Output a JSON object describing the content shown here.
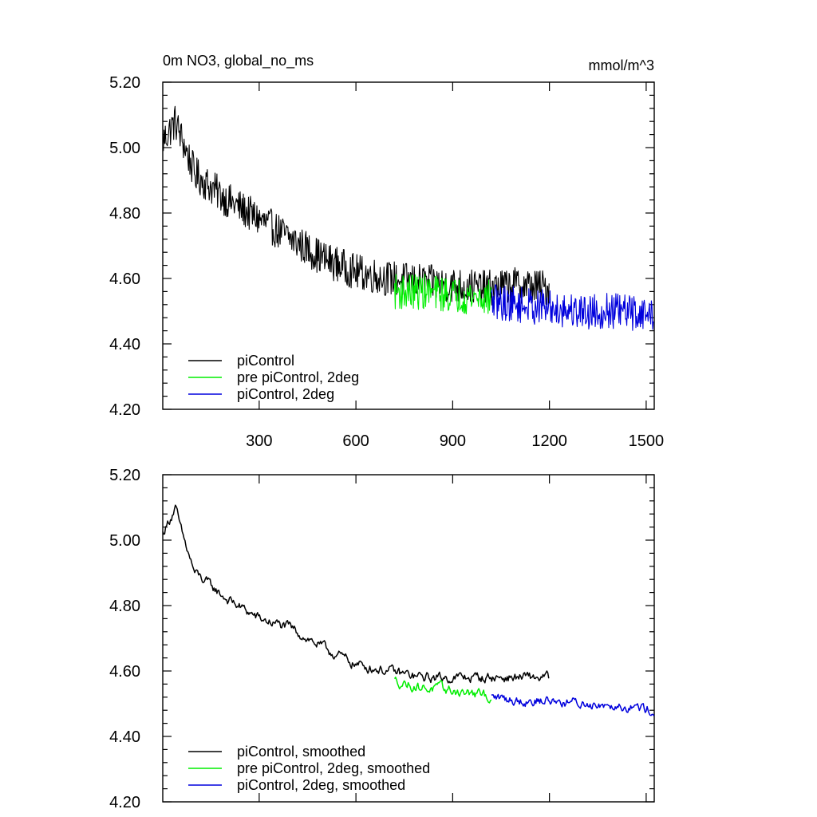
{
  "chart_data": [
    {
      "type": "line",
      "title": "0m NO3, global_no_ms",
      "units": "mmol/m^3",
      "xlim": [
        1,
        1525
      ],
      "ylim": [
        4.2,
        5.2
      ],
      "x_ticks": [
        300,
        600,
        900,
        1200,
        1500
      ],
      "x_tick_labels": [
        "300",
        "600",
        "900",
        "1200",
        "1500"
      ],
      "y_ticks": [
        4.2,
        4.4,
        4.6,
        4.8,
        5.0,
        5.2
      ],
      "y_tick_labels": [
        "4.20",
        "4.40",
        "4.60",
        "4.80",
        "5.00",
        "5.20"
      ],
      "grid": false,
      "legend_position": "bottom-left",
      "series": [
        {
          "name": "piControl",
          "color": "#000000",
          "noise": 0.055,
          "knots": [
            [
              1,
              5.02
            ],
            [
              40,
              5.08
            ],
            [
              100,
              4.92
            ],
            [
              200,
              4.84
            ],
            [
              300,
              4.78
            ],
            [
              400,
              4.72
            ],
            [
              500,
              4.66
            ],
            [
              600,
              4.62
            ],
            [
              700,
              4.6
            ],
            [
              800,
              4.59
            ],
            [
              900,
              4.58
            ],
            [
              1000,
              4.57
            ],
            [
              1100,
              4.58
            ],
            [
              1200,
              4.57
            ]
          ]
        },
        {
          "name": "pre piControl, 2deg",
          "color": "#00ee00",
          "noise": 0.055,
          "knots": [
            [
              720,
              4.56
            ],
            [
              800,
              4.56
            ],
            [
              900,
              4.55
            ],
            [
              1020,
              4.54
            ]
          ]
        },
        {
          "name": "piControl, 2deg",
          "color": "#0000dd",
          "noise": 0.055,
          "knots": [
            [
              1020,
              4.53
            ],
            [
              1100,
              4.52
            ],
            [
              1200,
              4.51
            ],
            [
              1300,
              4.5
            ],
            [
              1400,
              4.5
            ],
            [
              1525,
              4.49
            ]
          ]
        }
      ]
    },
    {
      "type": "line",
      "title": "",
      "xlim": [
        1,
        1525
      ],
      "ylim": [
        4.2,
        5.2
      ],
      "x_ticks": [
        300,
        600,
        900,
        1200,
        1500
      ],
      "y_ticks": [
        4.2,
        4.4,
        4.6,
        4.8,
        5.0,
        5.2
      ],
      "y_tick_labels": [
        "4.20",
        "4.40",
        "4.60",
        "4.80",
        "5.00",
        "5.20"
      ],
      "grid": false,
      "legend_position": "bottom-left",
      "series": [
        {
          "name": "piControl, smoothed",
          "color": "#000000",
          "noise": 0.02,
          "knots": [
            [
              1,
              5.02
            ],
            [
              40,
              5.1
            ],
            [
              60,
              5.02
            ],
            [
              100,
              4.9
            ],
            [
              200,
              4.82
            ],
            [
              300,
              4.76
            ],
            [
              400,
              4.73
            ],
            [
              500,
              4.67
            ],
            [
              600,
              4.62
            ],
            [
              700,
              4.6
            ],
            [
              800,
              4.58
            ],
            [
              900,
              4.58
            ],
            [
              1000,
              4.58
            ],
            [
              1100,
              4.58
            ],
            [
              1200,
              4.58
            ]
          ]
        },
        {
          "name": "pre piControl, 2deg, smoothed",
          "color": "#00ee00",
          "noise": 0.02,
          "knots": [
            [
              720,
              4.57
            ],
            [
              800,
              4.55
            ],
            [
              900,
              4.54
            ],
            [
              1020,
              4.52
            ]
          ]
        },
        {
          "name": "piControl, 2deg, smoothed",
          "color": "#0000dd",
          "noise": 0.02,
          "knots": [
            [
              1020,
              4.52
            ],
            [
              1100,
              4.51
            ],
            [
              1200,
              4.51
            ],
            [
              1300,
              4.5
            ],
            [
              1400,
              4.5
            ],
            [
              1525,
              4.48
            ]
          ]
        }
      ]
    }
  ]
}
